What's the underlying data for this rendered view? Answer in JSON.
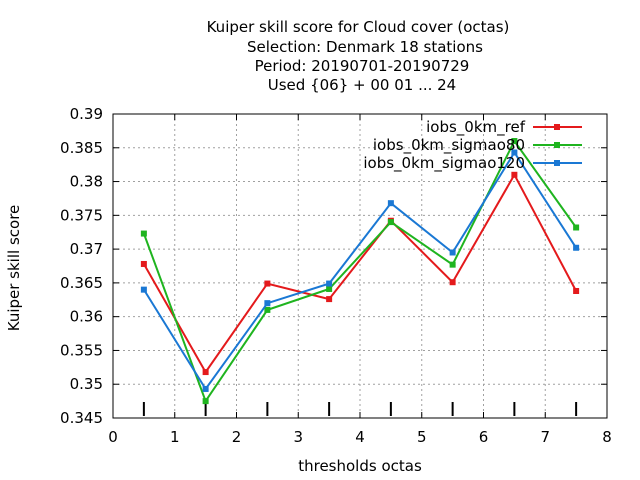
{
  "chart_data": {
    "type": "line",
    "title_lines": [
      "Kuiper skill score  for Cloud cover (octas)",
      "Selection: Denmark     18 stations",
      "Period: 20190701-20190729",
      "Used {06} + 00 01 ... 24"
    ],
    "xlabel": "thresholds octas",
    "ylabel": "Kuiper skill score",
    "xlim": [
      0,
      8
    ],
    "ylim": [
      0.345,
      0.39
    ],
    "x_ticks": [
      "0",
      "1",
      "2",
      "3",
      "4",
      "5",
      "6",
      "7",
      "8"
    ],
    "y_ticks": [
      "0.345",
      "0.35",
      "0.355",
      "0.36",
      "0.365",
      "0.37",
      "0.375",
      "0.38",
      "0.385",
      "0.39"
    ],
    "grid": true,
    "legend_position": "top-right",
    "x": [
      0.5,
      1.5,
      2.5,
      3.5,
      4.5,
      5.5,
      6.5,
      7.5
    ],
    "series": [
      {
        "name": "iobs_0km_ref",
        "color": "#e41a1c",
        "values": [
          0.3678,
          0.3518,
          0.3649,
          0.3626,
          0.3742,
          0.3651,
          0.381,
          0.3638
        ]
      },
      {
        "name": "iobs_0km_sigmao80",
        "color": "#1fb41f",
        "values": [
          0.3723,
          0.3475,
          0.361,
          0.3641,
          0.374,
          0.3677,
          0.386,
          0.3732
        ]
      },
      {
        "name": "iobs_0km_sigmao120",
        "color": "#1a78d4",
        "values": [
          0.364,
          0.3493,
          0.362,
          0.3649,
          0.3768,
          0.3695,
          0.3843,
          0.3702
        ]
      }
    ]
  }
}
